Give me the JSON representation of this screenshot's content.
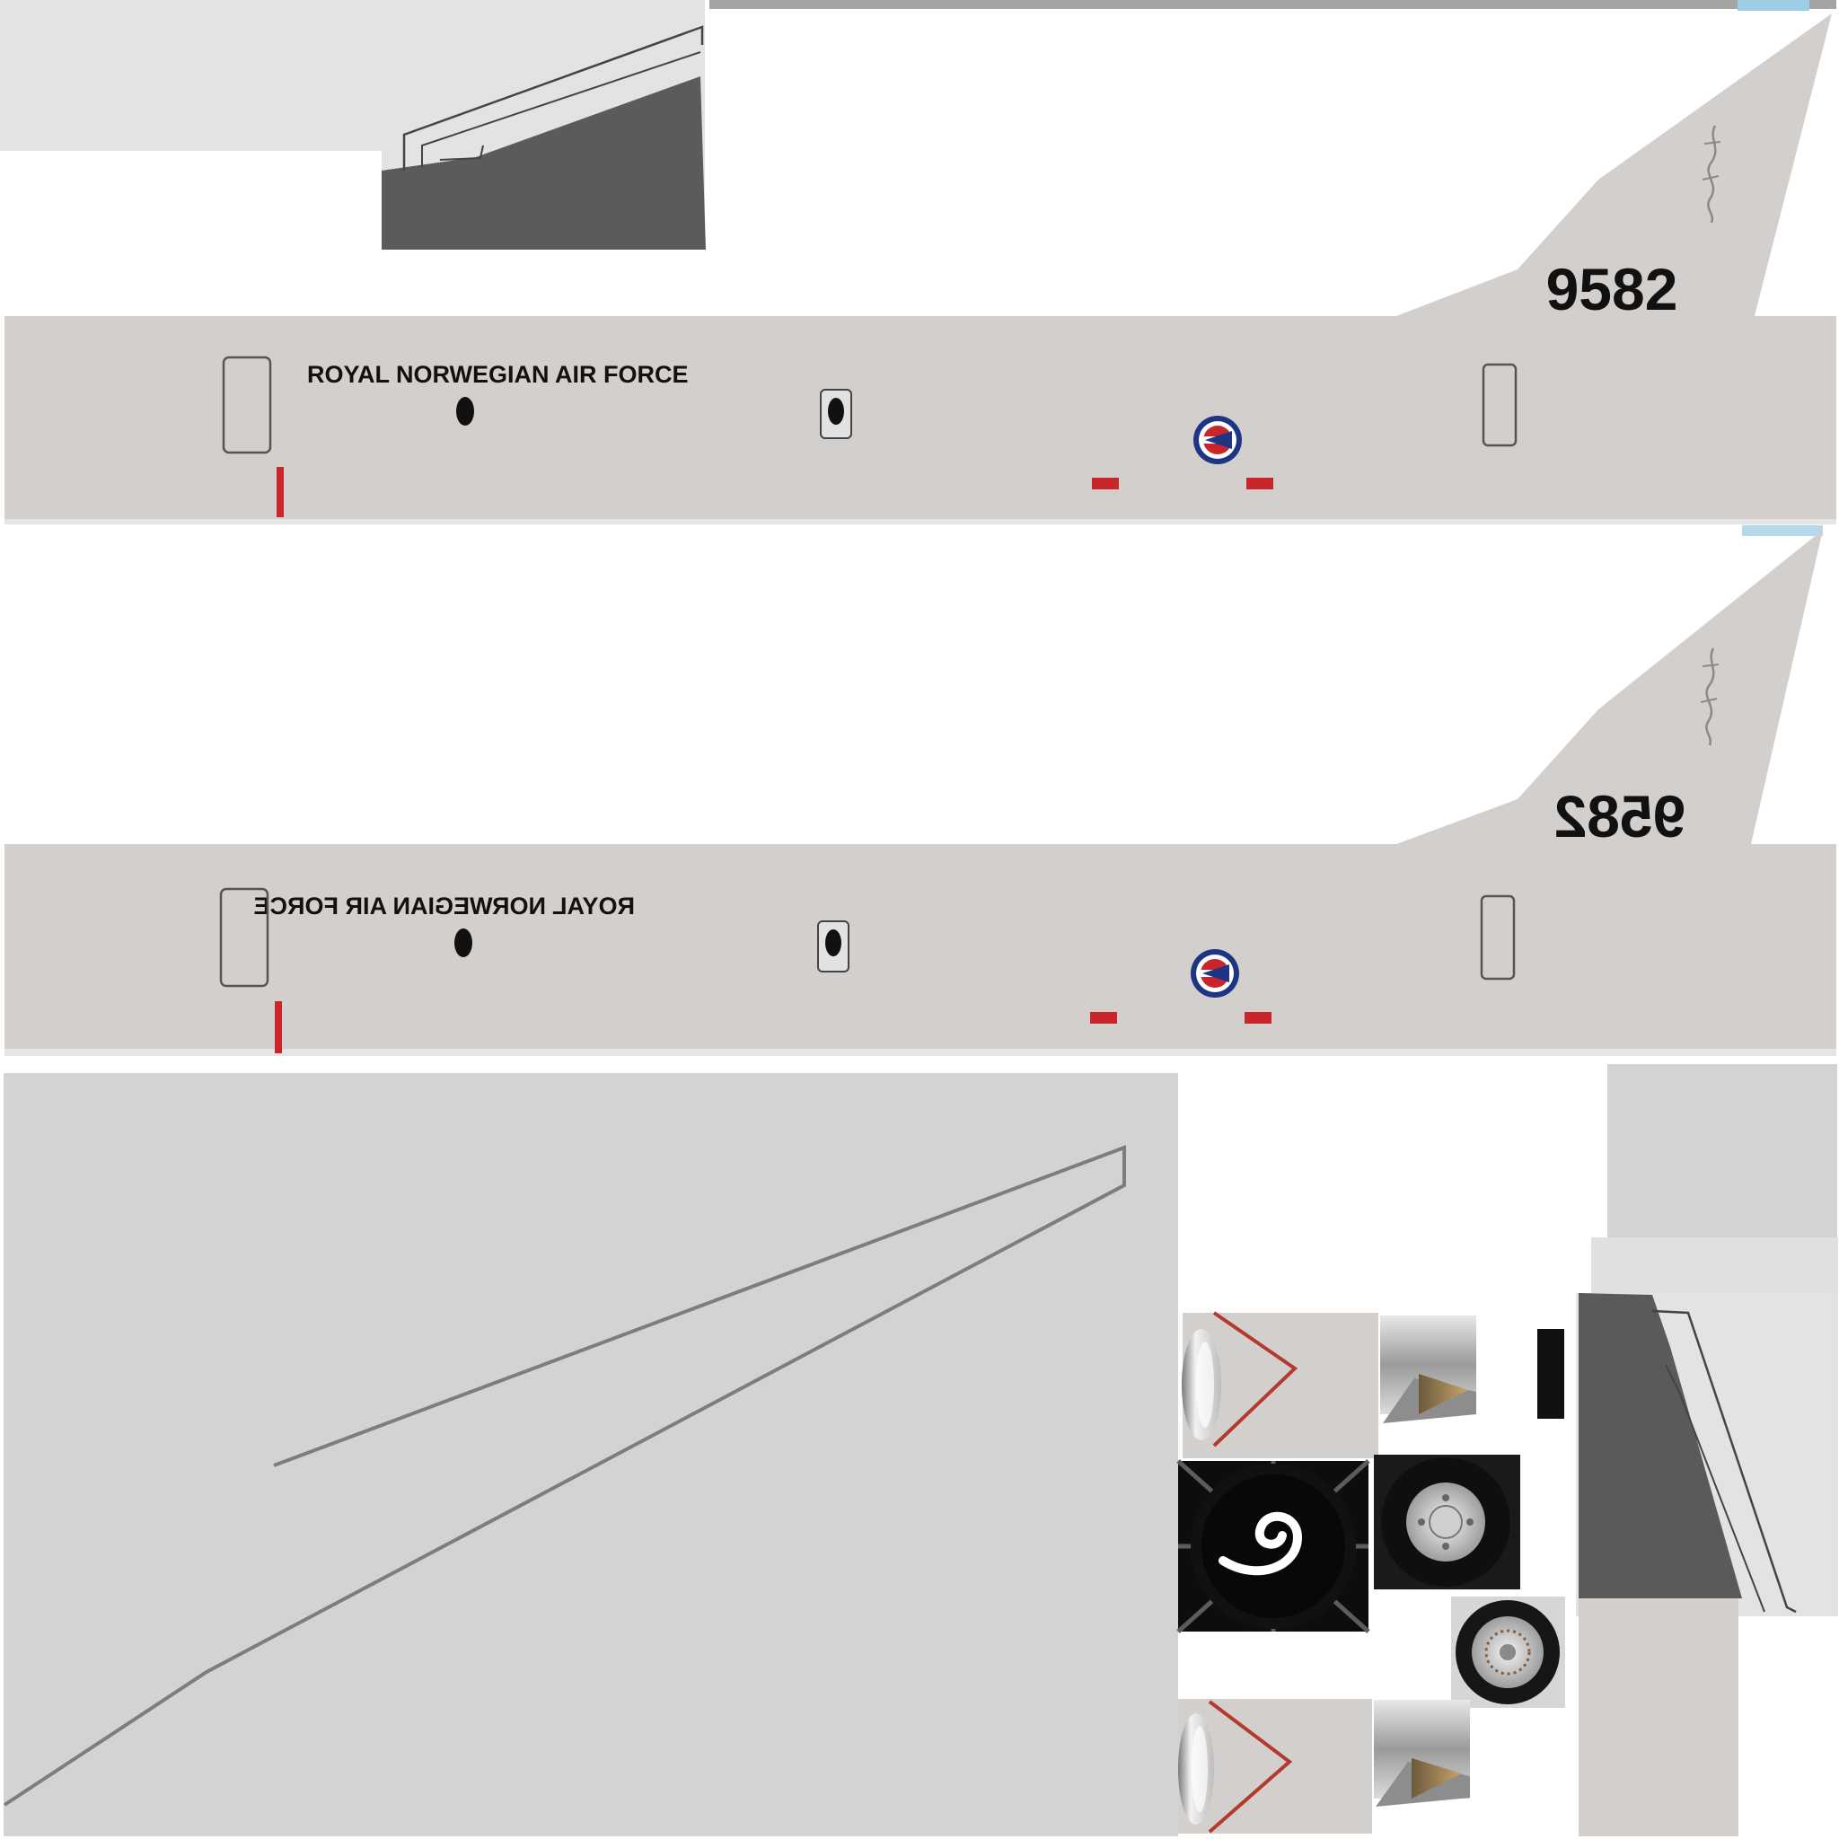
{
  "livery": {
    "operator_text": "ROYAL NORWEGIAN AIR FORCE",
    "tail_number": "9582"
  },
  "colors": {
    "background": "#ffffff",
    "fuselage": "#d3cfcd",
    "wing_panel": "#d3d3d3",
    "panel_light": "#e2e3e5",
    "panel_dark": "#5a5a5a",
    "panel_line": "#7d7d7d",
    "accent_red": "#c8262b",
    "roundel_blue": "#1e3585",
    "roundel_red": "#c8262b",
    "tire_black": "#111111",
    "window_outline": "#555555"
  },
  "icons": {
    "roundel": "norwegian-roundel-icon",
    "intake": "engine-intake-icon",
    "spinner": "engine-spinner-icon",
    "wheel": "wheel-icon"
  }
}
